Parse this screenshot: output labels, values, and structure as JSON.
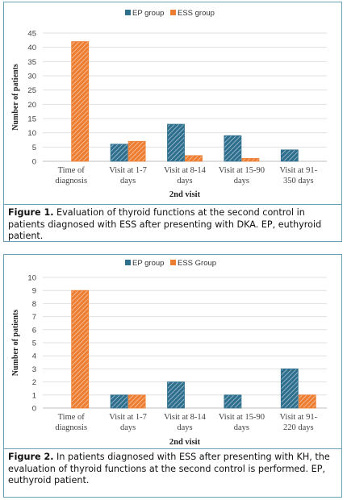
{
  "chart_data": [
    {
      "type": "bar",
      "categories": [
        [
          "Time of",
          "diagnosis"
        ],
        [
          "Visit at 1-7",
          "days"
        ],
        [
          "Visit at 8-14",
          "days"
        ],
        [
          "Visit at 15-90",
          "days"
        ],
        [
          "Visit at 91-",
          "350 days"
        ]
      ],
      "series": [
        {
          "name": "EP group",
          "values": [
            0,
            6,
            13,
            9,
            4
          ],
          "color": "#2e6f8e"
        },
        {
          "name": "ESS group",
          "values": [
            42,
            7,
            2,
            1,
            0
          ],
          "color": "#ed7d31"
        }
      ],
      "xlabel": "2nd visit",
      "ylabel": "Number of patients",
      "ylim": [
        0,
        45
      ],
      "yticks": [
        0,
        5,
        10,
        15,
        20,
        25,
        30,
        35,
        40,
        45
      ],
      "grid": true,
      "legend": "top-center"
    },
    {
      "type": "bar",
      "categories": [
        [
          "Time of",
          "diagnosis"
        ],
        [
          "Visit at 1-7",
          "days"
        ],
        [
          "Visit at 8-14",
          "days"
        ],
        [
          "Visit at 15-90",
          "days"
        ],
        [
          "Visit at 91-",
          "220 days"
        ]
      ],
      "series": [
        {
          "name": "EP group",
          "values": [
            0,
            1,
            2,
            1,
            3
          ],
          "color": "#2e6f8e"
        },
        {
          "name": "ESS Group",
          "values": [
            9,
            1,
            0,
            0,
            1
          ],
          "color": "#ed7d31"
        }
      ],
      "xlabel": "2nd visit",
      "ylabel": "Number of patients",
      "ylim": [
        0,
        10
      ],
      "yticks": [
        0,
        1,
        2,
        3,
        4,
        5,
        6,
        7,
        8,
        9,
        10
      ],
      "grid": true,
      "legend": "top-center"
    }
  ],
  "captions": [
    {
      "label": "Figure 1.",
      "text": "Evaluation of thyroid functions at the second control in patients diagnosed with ESS after presenting with DKA. EP, euthyroid patient."
    },
    {
      "label": "Figure 2.",
      "text": "In patients diagnosed with ESS after presenting with KH, the evaluation of thyroid functions at the second control is performed. EP, euthyroid patient."
    }
  ]
}
